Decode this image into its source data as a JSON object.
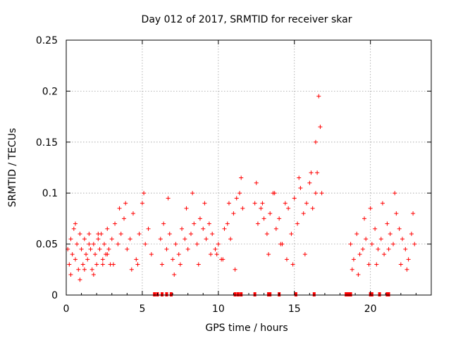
{
  "chart_data": {
    "type": "scatter",
    "title": "Day 012 of 2017, SRMTID for receiver skar",
    "xlabel": "GPS time / hours",
    "ylabel": "SRMTID / TECUs",
    "xlim": [
      0,
      24
    ],
    "ylim": [
      0,
      0.25
    ],
    "xticks": [
      0,
      5,
      10,
      15,
      20
    ],
    "yticks": [
      0,
      0.05,
      0.1,
      0.15,
      0.2,
      0.25
    ],
    "grid": true,
    "marker": "+",
    "color": "#ff0000",
    "series": [
      {
        "name": "SRMTID",
        "x": [
          0.1,
          0.2,
          0.3,
          0.4,
          0.5,
          0.6,
          0.7,
          0.8,
          0.9,
          1.0,
          1.1,
          1.2,
          1.3,
          1.4,
          1.5,
          1.6,
          1.7,
          1.8,
          1.9,
          2.0,
          2.1,
          2.2,
          2.3,
          2.4,
          2.5,
          2.6,
          2.7,
          2.8,
          2.9,
          3.0,
          3.2,
          3.4,
          3.6,
          3.8,
          4.0,
          4.2,
          4.4,
          4.6,
          4.8,
          5.0,
          5.2,
          5.4,
          5.6,
          6.2,
          6.4,
          6.6,
          6.8,
          7.0,
          7.2,
          7.4,
          7.6,
          7.8,
          8.0,
          8.2,
          8.4,
          8.6,
          8.8,
          9.0,
          9.2,
          9.4,
          9.6,
          9.8,
          10.0,
          10.2,
          10.4,
          10.6,
          10.8,
          11.0,
          11.2,
          11.4,
          11.6,
          12.4,
          12.6,
          12.8,
          13.0,
          13.2,
          13.4,
          13.6,
          13.8,
          14.0,
          14.2,
          14.4,
          14.6,
          14.8,
          15.0,
          15.2,
          15.4,
          15.6,
          15.8,
          16.0,
          16.2,
          16.4,
          16.5,
          16.6,
          16.7,
          16.8,
          18.7,
          18.9,
          19.1,
          19.3,
          19.5,
          19.7,
          19.9,
          20.1,
          20.3,
          20.5,
          20.7,
          20.9,
          21.1,
          21.3,
          21.5,
          21.7,
          21.9,
          22.1,
          22.3,
          22.5,
          22.7,
          22.9,
          0.3,
          0.6,
          0.9,
          1.2,
          1.5,
          1.8,
          2.1,
          2.4,
          2.7,
          3.1,
          3.5,
          3.9,
          4.3,
          4.7,
          5.1,
          6.3,
          6.7,
          7.1,
          7.5,
          7.9,
          8.3,
          8.7,
          9.1,
          9.5,
          9.9,
          10.3,
          10.7,
          11.1,
          11.5,
          12.5,
          12.9,
          13.3,
          13.7,
          14.1,
          14.5,
          14.9,
          15.3,
          15.7,
          16.1,
          16.4,
          18.8,
          19.2,
          19.6,
          20.0,
          20.4,
          20.8,
          21.2,
          21.6,
          22.0,
          22.4,
          22.8
        ],
        "y": [
          0.045,
          0.03,
          0.055,
          0.04,
          0.065,
          0.035,
          0.05,
          0.025,
          0.06,
          0.045,
          0.03,
          0.055,
          0.04,
          0.035,
          0.06,
          0.045,
          0.025,
          0.05,
          0.04,
          0.03,
          0.055,
          0.045,
          0.06,
          0.035,
          0.05,
          0.04,
          0.065,
          0.045,
          0.03,
          0.055,
          0.07,
          0.05,
          0.06,
          0.075,
          0.045,
          0.055,
          0.08,
          0.035,
          0.06,
          0.09,
          0.05,
          0.065,
          0.04,
          0.055,
          0.07,
          0.045,
          0.06,
          0.035,
          0.05,
          0.04,
          0.065,
          0.055,
          0.045,
          0.06,
          0.07,
          0.05,
          0.075,
          0.065,
          0.055,
          0.07,
          0.06,
          0.045,
          0.05,
          0.035,
          0.065,
          0.07,
          0.055,
          0.08,
          0.095,
          0.1,
          0.085,
          0.09,
          0.07,
          0.085,
          0.075,
          0.06,
          0.08,
          0.1,
          0.065,
          0.075,
          0.05,
          0.09,
          0.085,
          0.06,
          0.095,
          0.07,
          0.105,
          0.08,
          0.09,
          0.11,
          0.085,
          0.1,
          0.12,
          0.195,
          0.165,
          0.1,
          0.05,
          0.035,
          0.06,
          0.04,
          0.045,
          0.055,
          0.03,
          0.05,
          0.065,
          0.045,
          0.055,
          0.04,
          0.07,
          0.06,
          0.05,
          0.08,
          0.065,
          0.055,
          0.045,
          0.035,
          0.06,
          0.05,
          0.02,
          0.07,
          0.015,
          0.025,
          0.05,
          0.02,
          0.06,
          0.03,
          0.04,
          0.03,
          0.085,
          0.09,
          0.025,
          0.03,
          0.1,
          0.03,
          0.095,
          0.02,
          0.03,
          0.085,
          0.1,
          0.03,
          0.09,
          0.04,
          0.04,
          0.035,
          0.09,
          0.025,
          0.115,
          0.11,
          0.09,
          0.04,
          0.1,
          0.05,
          0.035,
          0.03,
          0.115,
          0.04,
          0.12,
          0.15,
          0.025,
          0.02,
          0.075,
          0.085,
          0.03,
          0.09,
          0.045,
          0.1,
          0.03,
          0.025,
          0.08
        ]
      }
    ],
    "zero_markers_x": [
      5.8,
      6.0,
      6.3,
      6.6,
      6.9,
      11.1,
      11.3,
      11.5,
      12.4,
      13.3,
      13.4,
      14.0,
      15.1,
      16.3,
      18.4,
      18.5,
      18.6,
      18.7,
      20.0,
      20.1,
      20.6,
      21.1,
      21.2
    ]
  }
}
